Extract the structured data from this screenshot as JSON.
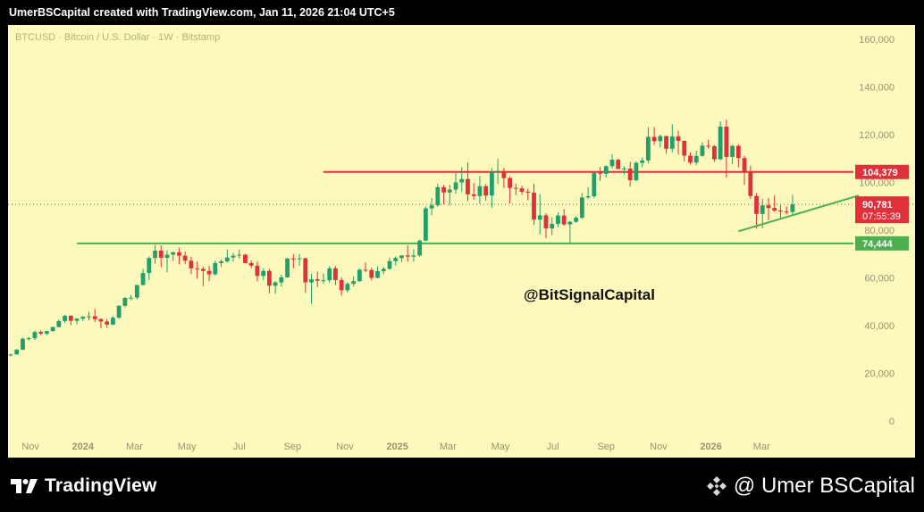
{
  "header": {
    "caption": "UmerBSCapital created with TradingView.com, Jan 11, 2026 21:04 UTC+5"
  },
  "chart": {
    "symbol_line": "BTCUSD · Bitcoin / U.S. Dollar · 1W · Bitstamp",
    "watermark": "@BitSignalCapital",
    "colors": {
      "background": "#fdf8bc",
      "up": "#22a06b",
      "down": "#e0303a",
      "support": "#4caf50",
      "resistance": "#e0303a",
      "trend": "#4caf50"
    }
  },
  "chart_data": {
    "type": "candlestick",
    "ylim": [
      0,
      165000
    ],
    "y_ticks": [
      0,
      20000,
      40000,
      60000,
      80000,
      100000,
      120000,
      140000,
      160000
    ],
    "y_tick_labels": [
      "0",
      "20,000",
      "40,000",
      "60,000",
      "80,000",
      "100,000",
      "120,000",
      "140,000",
      "160,000"
    ],
    "x_ticks": [
      {
        "label": "Nov",
        "date": "2023-11-01"
      },
      {
        "label": "2024",
        "date": "2024-01-01"
      },
      {
        "label": "Mar",
        "date": "2024-03-01"
      },
      {
        "label": "May",
        "date": "2024-05-01"
      },
      {
        "label": "Jul",
        "date": "2024-07-01"
      },
      {
        "label": "Sep",
        "date": "2024-09-01"
      },
      {
        "label": "Nov",
        "date": "2024-11-01"
      },
      {
        "label": "2025",
        "date": "2025-01-01"
      },
      {
        "label": "Mar",
        "date": "2025-03-01"
      },
      {
        "label": "May",
        "date": "2025-05-01"
      },
      {
        "label": "Jul",
        "date": "2025-07-01"
      },
      {
        "label": "Sep",
        "date": "2025-09-01"
      },
      {
        "label": "Nov",
        "date": "2025-11-01"
      },
      {
        "label": "2026",
        "date": "2026-01-01"
      },
      {
        "label": "Mar",
        "date": "2026-03-01"
      }
    ],
    "first_candle_date": "2023-10-09",
    "candles": [
      [
        27500,
        28200,
        27100,
        27900
      ],
      [
        27900,
        30200,
        27800,
        29900
      ],
      [
        29900,
        35000,
        29700,
        34500
      ],
      [
        34500,
        35300,
        33800,
        34700
      ],
      [
        34700,
        37900,
        34000,
        37300
      ],
      [
        37300,
        38000,
        36000,
        36600
      ],
      [
        36600,
        37800,
        35800,
        37700
      ],
      [
        37700,
        39500,
        37400,
        39400
      ],
      [
        39400,
        42500,
        39200,
        41900
      ],
      [
        41900,
        44500,
        41000,
        44100
      ],
      [
        44100,
        44300,
        40200,
        42000
      ],
      [
        42000,
        43200,
        40500,
        42900
      ],
      [
        42900,
        44000,
        41800,
        43700
      ],
      [
        43700,
        45800,
        42200,
        43900
      ],
      [
        43900,
        47000,
        41500,
        42700
      ],
      [
        42700,
        43000,
        38800,
        41700
      ],
      [
        41700,
        42800,
        39000,
        40400
      ],
      [
        40400,
        43900,
        40200,
        43300
      ],
      [
        43300,
        48500,
        42800,
        48300
      ],
      [
        48300,
        52000,
        47600,
        51600
      ],
      [
        51600,
        52800,
        50600,
        51700
      ],
      [
        51700,
        57000,
        50900,
        57000
      ],
      [
        57000,
        63900,
        56800,
        62000
      ],
      [
        62000,
        69000,
        59000,
        68300
      ],
      [
        68300,
        73800,
        66000,
        71400
      ],
      [
        71400,
        73600,
        64500,
        68400
      ],
      [
        68400,
        71500,
        62300,
        69700
      ],
      [
        69700,
        71000,
        67000,
        70700
      ],
      [
        70700,
        72700,
        65600,
        69300
      ],
      [
        69300,
        71000,
        65700,
        67200
      ],
      [
        67200,
        68800,
        61600,
        64000
      ],
      [
        64000,
        66800,
        59600,
        63800
      ],
      [
        63800,
        64800,
        56500,
        62900
      ],
      [
        62900,
        65000,
        58600,
        61500
      ],
      [
        61500,
        67300,
        61000,
        66200
      ],
      [
        66200,
        67700,
        64500,
        66900
      ],
      [
        66900,
        71900,
        66300,
        68500
      ],
      [
        68500,
        70500,
        66700,
        69300
      ],
      [
        69300,
        71900,
        68000,
        69700
      ],
      [
        69700,
        70100,
        66100,
        66200
      ],
      [
        66200,
        67300,
        64100,
        65100
      ],
      [
        65100,
        66900,
        58500,
        60800
      ],
      [
        60800,
        64000,
        59000,
        62900
      ],
      [
        62900,
        63800,
        53500,
        56700
      ],
      [
        56700,
        58700,
        53300,
        58100
      ],
      [
        58100,
        61400,
        56300,
        60200
      ],
      [
        60200,
        68300,
        60000,
        68100
      ],
      [
        68100,
        69900,
        64000,
        67900
      ],
      [
        67900,
        70000,
        65100,
        68200
      ],
      [
        68200,
        68400,
        53700,
        58100
      ],
      [
        58100,
        61700,
        49000,
        59400
      ],
      [
        59400,
        62600,
        56200,
        58800
      ],
      [
        58800,
        61800,
        57600,
        59000
      ],
      [
        59000,
        64900,
        58000,
        64000
      ],
      [
        64000,
        65000,
        57000,
        59100
      ],
      [
        59100,
        60200,
        52500,
        54800
      ],
      [
        54800,
        58200,
        53800,
        57500
      ],
      [
        57500,
        60600,
        56400,
        58600
      ],
      [
        58600,
        64000,
        58400,
        63400
      ],
      [
        63400,
        66500,
        62400,
        63300
      ],
      [
        63300,
        64200,
        58900,
        60000
      ],
      [
        60000,
        64900,
        59800,
        62800
      ],
      [
        62800,
        64500,
        61500,
        63800
      ],
      [
        63800,
        68300,
        63300,
        67000
      ],
      [
        67000,
        69000,
        65100,
        68300
      ],
      [
        68300,
        69500,
        66600,
        69400
      ],
      [
        69400,
        73600,
        66800,
        68900
      ],
      [
        68900,
        72000,
        66800,
        69400
      ],
      [
        69400,
        76000,
        68800,
        75600
      ],
      [
        75600,
        89900,
        75400,
        89100
      ],
      [
        89100,
        93500,
        86300,
        90400
      ],
      [
        90400,
        99500,
        89700,
        98000
      ],
      [
        98000,
        98900,
        90800,
        95800
      ],
      [
        95800,
        99000,
        90500,
        97000
      ],
      [
        97000,
        104000,
        95300,
        100000
      ],
      [
        100000,
        106400,
        96000,
        101400
      ],
      [
        101400,
        108300,
        92200,
        95000
      ],
      [
        95000,
        99700,
        92800,
        94300
      ],
      [
        94300,
        102700,
        91000,
        98400
      ],
      [
        98400,
        99300,
        92300,
        94500
      ],
      [
        94500,
        106000,
        89300,
        104400
      ],
      [
        104400,
        109900,
        99400,
        104800
      ],
      [
        104800,
        106200,
        97700,
        101800
      ],
      [
        101800,
        102500,
        91200,
        97700
      ],
      [
        97700,
        99500,
        94700,
        97500
      ],
      [
        97500,
        98600,
        94800,
        96100
      ],
      [
        96100,
        97400,
        92500,
        95700
      ],
      [
        95700,
        99400,
        82200,
        84400
      ],
      [
        84400,
        95000,
        78200,
        86200
      ],
      [
        86200,
        87100,
        76600,
        80700
      ],
      [
        80700,
        85300,
        78000,
        82600
      ],
      [
        82600,
        87500,
        81200,
        86100
      ],
      [
        86100,
        88800,
        81800,
        82400
      ],
      [
        82400,
        83900,
        74400,
        83500
      ],
      [
        83500,
        85800,
        83000,
        85200
      ],
      [
        85200,
        95600,
        84700,
        93700
      ],
      [
        93700,
        97900,
        93000,
        94200
      ],
      [
        94200,
        104100,
        93400,
        104000
      ],
      [
        104000,
        106500,
        100700,
        103600
      ],
      [
        103600,
        107100,
        102000,
        106800
      ],
      [
        106800,
        111900,
        105800,
        109500
      ],
      [
        109500,
        110000,
        106300,
        105600
      ],
      [
        105600,
        106800,
        103300,
        105800
      ],
      [
        105800,
        108600,
        98200,
        100900
      ],
      [
        100900,
        108800,
        100500,
        108200
      ],
      [
        108200,
        110500,
        106500,
        109200
      ],
      [
        109200,
        123200,
        107900,
        119100
      ],
      [
        119100,
        123200,
        115700,
        117300
      ],
      [
        117300,
        120100,
        114700,
        119400
      ],
      [
        119400,
        119600,
        112000,
        114100
      ],
      [
        114100,
        124400,
        112700,
        119300
      ],
      [
        119300,
        121600,
        111700,
        117400
      ],
      [
        117400,
        117600,
        108800,
        111200
      ],
      [
        111200,
        112600,
        107400,
        108300
      ],
      [
        108300,
        113300,
        107200,
        111100
      ],
      [
        111100,
        116800,
        110800,
        115400
      ],
      [
        115400,
        117900,
        114100,
        115200
      ],
      [
        115200,
        115700,
        108600,
        109700
      ],
      [
        109700,
        125600,
        109400,
        123400
      ],
      [
        123400,
        126300,
        102000,
        110700
      ],
      [
        110700,
        115800,
        107600,
        115300
      ],
      [
        115300,
        116000,
        106300,
        110200
      ],
      [
        110200,
        111200,
        99000,
        104700
      ],
      [
        104700,
        107000,
        93000,
        94300
      ],
      [
        94300,
        95500,
        80600,
        86800
      ],
      [
        86800,
        93100,
        80700,
        90400
      ],
      [
        90400,
        93500,
        84200,
        89300
      ],
      [
        89300,
        94600,
        87600,
        88200
      ],
      [
        88200,
        90500,
        85000,
        87800
      ],
      [
        87800,
        90000,
        86500,
        87600
      ],
      [
        87600,
        94800,
        86400,
        90781
      ]
    ],
    "horizontal_lines": [
      {
        "name": "resistance",
        "value": 104379,
        "label": "104,379",
        "from_candle": 52,
        "to": "right"
      },
      {
        "name": "support",
        "value": 74444,
        "label": "74,444",
        "from_candle": 11,
        "to": "right"
      }
    ],
    "trendline": {
      "from": {
        "candle": 121,
        "value": 79500
      },
      "to": {
        "candle": 141,
        "value": 94500
      }
    },
    "last_price": {
      "value": 90781,
      "label": "90,781",
      "countdown": "07:55:39"
    }
  },
  "footer": {
    "brand": "TradingView",
    "credit": "@ Umer BSCapital"
  }
}
